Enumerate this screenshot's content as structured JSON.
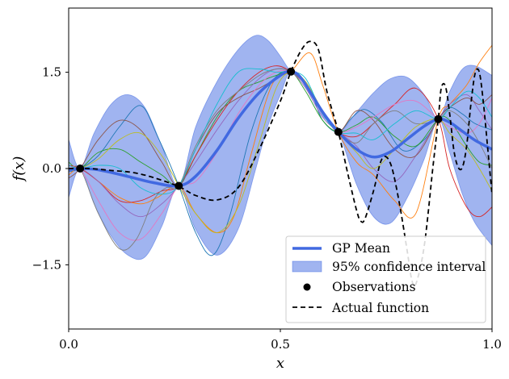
{
  "chart_data": {
    "type": "line",
    "title": "",
    "xlabel": "x",
    "ylabel": "f(x)",
    "xlim": [
      0.0,
      1.0
    ],
    "ylim": [
      -2.5,
      2.5
    ],
    "x_ticks": [
      0.0,
      0.5,
      1.0
    ],
    "x_tick_labels": [
      "0.0",
      "0.5",
      "1.0"
    ],
    "y_ticks": [
      -1.5,
      0.0,
      1.5
    ],
    "y_tick_labels": [
      "−1.5",
      "0.0",
      "1.5"
    ],
    "grid": false,
    "legend_position": "lower-right",
    "legend": [
      {
        "label": "GP Mean",
        "kind": "line",
        "color": "#4169e1"
      },
      {
        "label": "95% confidence interval",
        "kind": "patch",
        "color": "#4169e1"
      },
      {
        "label": "Observations",
        "kind": "marker",
        "color": "#000000"
      },
      {
        "label": "Actual function",
        "kind": "dashed",
        "color": "#000000"
      }
    ],
    "observations": {
      "x": [
        0.027,
        0.26,
        0.525,
        0.637,
        0.873
      ],
      "y": [
        0.0,
        -0.27,
        1.51,
        0.57,
        0.77
      ]
    },
    "gp_mean": {
      "x": [
        0.0,
        0.027,
        0.06,
        0.1,
        0.15,
        0.2,
        0.26,
        0.3,
        0.35,
        0.4,
        0.45,
        0.5,
        0.525,
        0.55,
        0.6,
        0.637,
        0.68,
        0.72,
        0.76,
        0.8,
        0.84,
        0.873,
        0.9,
        0.93,
        0.96,
        1.0
      ],
      "y": [
        -0.02,
        0.0,
        -0.01,
        -0.06,
        -0.14,
        -0.22,
        -0.27,
        -0.12,
        0.28,
        0.78,
        1.18,
        1.45,
        1.51,
        1.4,
        0.88,
        0.57,
        0.3,
        0.18,
        0.26,
        0.46,
        0.66,
        0.77,
        0.72,
        0.58,
        0.44,
        0.3
      ]
    },
    "confidence_interval_95": {
      "x": [
        0.0,
        0.027,
        0.06,
        0.1,
        0.14,
        0.18,
        0.22,
        0.26,
        0.3,
        0.35,
        0.4,
        0.44,
        0.47,
        0.5,
        0.525,
        0.56,
        0.6,
        0.637,
        0.68,
        0.72,
        0.76,
        0.8,
        0.84,
        0.873,
        0.9,
        0.93,
        0.96,
        1.0
      ],
      "upper": [
        0.45,
        0.0,
        0.55,
        1.0,
        1.15,
        0.95,
        0.35,
        -0.27,
        0.65,
        1.35,
        1.85,
        2.07,
        2.0,
        1.75,
        1.51,
        1.35,
        0.9,
        0.57,
        0.88,
        1.18,
        1.4,
        1.42,
        1.15,
        0.77,
        1.2,
        1.55,
        1.6,
        1.45
      ],
      "lower": [
        -0.45,
        0.0,
        -0.55,
        -1.05,
        -1.35,
        -1.38,
        -0.9,
        -0.27,
        -0.95,
        -1.35,
        -0.95,
        -0.05,
        0.65,
        1.15,
        1.51,
        1.3,
        0.82,
        0.57,
        -0.25,
        -0.75,
        -0.85,
        -0.45,
        0.15,
        0.77,
        0.25,
        -0.4,
        -0.85,
        -1.2
      ]
    },
    "actual_function": {
      "x": [
        0.0,
        0.05,
        0.1,
        0.15,
        0.2,
        0.26,
        0.3,
        0.35,
        0.4,
        0.45,
        0.5,
        0.525,
        0.55,
        0.57,
        0.59,
        0.61,
        0.637,
        0.66,
        0.68,
        0.69,
        0.7,
        0.72,
        0.74,
        0.76,
        0.78,
        0.8,
        0.81,
        0.82,
        0.84,
        0.86,
        0.873,
        0.88,
        0.89,
        0.9,
        0.91,
        0.92,
        0.93,
        0.94,
        0.95,
        0.96,
        0.97,
        0.98,
        0.99,
        1.0
      ],
      "y": [
        0.0,
        0.0,
        -0.03,
        -0.06,
        -0.14,
        -0.28,
        -0.42,
        -0.49,
        -0.3,
        0.3,
        1.05,
        1.51,
        1.85,
        1.98,
        1.85,
        1.2,
        0.57,
        -0.1,
        -0.65,
        -0.82,
        -0.78,
        -0.35,
        0.15,
        0.08,
        -0.5,
        -1.3,
        -1.72,
        -1.8,
        -1.2,
        0.0,
        0.77,
        1.25,
        1.28,
        0.85,
        0.28,
        0.02,
        0.02,
        0.35,
        1.0,
        1.48,
        1.5,
        1.0,
        0.3,
        -0.4
      ]
    },
    "samples": [
      {
        "color": "#1f77b4",
        "x": [
          0.0,
          0.027,
          0.07,
          0.12,
          0.17,
          0.21,
          0.26,
          0.3,
          0.34,
          0.38,
          0.43,
          0.48,
          0.525,
          0.57,
          0.6,
          0.637,
          0.67,
          0.7,
          0.74,
          0.79,
          0.84,
          0.873,
          0.9,
          0.93,
          0.96,
          1.0
        ],
        "y": [
          -0.05,
          0.0,
          0.2,
          0.65,
          0.98,
          0.5,
          -0.27,
          -1.0,
          -1.35,
          -0.75,
          0.55,
          1.35,
          1.51,
          1.2,
          0.75,
          0.57,
          0.8,
          0.92,
          0.72,
          0.28,
          0.45,
          0.77,
          0.95,
          0.85,
          0.7,
          0.6
        ]
      },
      {
        "color": "#ff7f0e",
        "x": [
          0.0,
          0.027,
          0.07,
          0.12,
          0.17,
          0.21,
          0.26,
          0.3,
          0.35,
          0.39,
          0.43,
          0.48,
          0.525,
          0.57,
          0.6,
          0.637,
          0.68,
          0.72,
          0.77,
          0.82,
          0.873,
          0.9,
          0.94,
          0.97,
          1.0
        ],
        "y": [
          -0.1,
          0.0,
          -0.2,
          -0.45,
          -0.55,
          -0.45,
          -0.27,
          -0.7,
          -1.0,
          -0.75,
          0.2,
          1.3,
          1.51,
          1.8,
          1.3,
          0.57,
          0.1,
          -0.1,
          -0.5,
          -0.7,
          0.77,
          1.0,
          1.3,
          1.65,
          1.92
        ]
      },
      {
        "color": "#2ca02c",
        "x": [
          0.0,
          0.027,
          0.07,
          0.12,
          0.17,
          0.22,
          0.26,
          0.3,
          0.35,
          0.4,
          0.45,
          0.49,
          0.525,
          0.56,
          0.6,
          0.637,
          0.68,
          0.72,
          0.77,
          0.82,
          0.873,
          0.9,
          0.94,
          0.97,
          1.0
        ],
        "y": [
          0.1,
          0.0,
          0.25,
          0.3,
          0.1,
          -0.1,
          -0.27,
          0.2,
          0.8,
          1.2,
          1.35,
          1.45,
          1.51,
          1.2,
          0.75,
          0.57,
          0.68,
          0.8,
          0.5,
          0.35,
          0.77,
          0.75,
          0.35,
          0.1,
          0.05
        ]
      },
      {
        "color": "#d62728",
        "x": [
          0.0,
          0.027,
          0.07,
          0.12,
          0.17,
          0.22,
          0.26,
          0.3,
          0.35,
          0.4,
          0.45,
          0.49,
          0.525,
          0.56,
          0.6,
          0.637,
          0.68,
          0.72,
          0.77,
          0.82,
          0.873,
          0.9,
          0.94,
          0.97,
          1.0
        ],
        "y": [
          0.05,
          0.0,
          -0.2,
          -0.5,
          -0.5,
          -0.35,
          -0.27,
          0.2,
          0.75,
          1.2,
          1.5,
          1.6,
          1.51,
          1.3,
          0.9,
          0.57,
          0.5,
          0.7,
          1.0,
          1.25,
          0.77,
          0.0,
          -0.6,
          -0.75,
          -0.6
        ]
      },
      {
        "color": "#9467bd",
        "x": [
          0.0,
          0.027,
          0.07,
          0.12,
          0.17,
          0.22,
          0.26,
          0.3,
          0.35,
          0.4,
          0.45,
          0.49,
          0.525,
          0.56,
          0.6,
          0.637,
          0.68,
          0.72,
          0.77,
          0.82,
          0.873,
          0.9,
          0.94,
          0.97,
          1.0
        ],
        "y": [
          -0.05,
          0.0,
          -0.2,
          -0.55,
          -0.75,
          -0.55,
          -0.27,
          0.1,
          0.6,
          1.05,
          1.4,
          1.55,
          1.51,
          1.25,
          0.8,
          0.57,
          0.35,
          0.0,
          -0.2,
          0.2,
          0.77,
          1.0,
          1.15,
          0.9,
          0.6
        ]
      },
      {
        "color": "#8c564b",
        "x": [
          0.0,
          0.027,
          0.07,
          0.12,
          0.17,
          0.22,
          0.26,
          0.3,
          0.35,
          0.4,
          0.45,
          0.49,
          0.525,
          0.56,
          0.6,
          0.637,
          0.68,
          0.72,
          0.77,
          0.82,
          0.873,
          0.9,
          0.94,
          0.97,
          1.0
        ],
        "y": [
          -0.15,
          0.0,
          0.45,
          0.75,
          0.6,
          0.1,
          -0.27,
          0.3,
          0.85,
          1.1,
          1.25,
          1.4,
          1.51,
          1.3,
          0.9,
          0.57,
          0.9,
          0.75,
          0.3,
          0.2,
          0.77,
          0.95,
          1.1,
          1.0,
          1.15
        ]
      },
      {
        "color": "#e377c2",
        "x": [
          0.0,
          0.027,
          0.07,
          0.12,
          0.17,
          0.22,
          0.26,
          0.3,
          0.35,
          0.4,
          0.45,
          0.49,
          0.525,
          0.56,
          0.6,
          0.637,
          0.68,
          0.72,
          0.77,
          0.82,
          0.873,
          0.9,
          0.94,
          0.97,
          1.0
        ],
        "y": [
          0.0,
          0.0,
          -0.5,
          -1.0,
          -1.1,
          -0.7,
          -0.27,
          -0.2,
          0.25,
          0.85,
          1.3,
          1.5,
          1.51,
          1.35,
          0.85,
          0.57,
          0.65,
          0.8,
          1.0,
          1.05,
          0.77,
          0.65,
          0.55,
          0.7,
          1.1
        ]
      },
      {
        "color": "#7f7f7f",
        "x": [
          0.0,
          0.027,
          0.07,
          0.12,
          0.16,
          0.2,
          0.23,
          0.26,
          0.3,
          0.35,
          0.4,
          0.45,
          0.49,
          0.525,
          0.56,
          0.6,
          0.637,
          0.68,
          0.72,
          0.77,
          0.82,
          0.873,
          0.9,
          0.94,
          0.97,
          1.0
        ],
        "y": [
          -0.05,
          0.0,
          -0.7,
          -1.25,
          -1.1,
          -0.5,
          -0.3,
          -0.27,
          0.35,
          0.9,
          1.2,
          1.45,
          1.55,
          1.51,
          1.3,
          0.85,
          0.57,
          0.4,
          0.7,
          0.9,
          0.7,
          0.77,
          0.9,
          0.7,
          0.4,
          0.0
        ]
      },
      {
        "color": "#bcbd22",
        "x": [
          0.0,
          0.027,
          0.07,
          0.12,
          0.17,
          0.22,
          0.26,
          0.3,
          0.35,
          0.4,
          0.45,
          0.49,
          0.525,
          0.56,
          0.6,
          0.637,
          0.68,
          0.72,
          0.77,
          0.82,
          0.873,
          0.9,
          0.94,
          0.97,
          1.0
        ],
        "y": [
          0.0,
          0.0,
          0.15,
          0.45,
          0.55,
          0.2,
          -0.27,
          -0.7,
          -1.0,
          -0.6,
          0.4,
          1.25,
          1.51,
          1.35,
          0.9,
          0.57,
          0.25,
          0.0,
          0.3,
          0.65,
          0.77,
          0.55,
          0.3,
          0.0,
          -0.35
        ]
      },
      {
        "color": "#17becf",
        "x": [
          0.0,
          0.027,
          0.07,
          0.12,
          0.17,
          0.22,
          0.26,
          0.3,
          0.35,
          0.4,
          0.45,
          0.49,
          0.525,
          0.56,
          0.6,
          0.637,
          0.68,
          0.72,
          0.77,
          0.82,
          0.873,
          0.9,
          0.94,
          0.97,
          1.0
        ],
        "y": [
          0.05,
          0.0,
          0.05,
          0.0,
          -0.3,
          -0.4,
          -0.27,
          0.3,
          1.0,
          1.5,
          1.55,
          1.5,
          1.51,
          1.4,
          0.85,
          0.57,
          0.55,
          0.45,
          0.7,
          0.9,
          0.77,
          0.95,
          1.2,
          1.1,
          0.8
        ]
      }
    ]
  }
}
